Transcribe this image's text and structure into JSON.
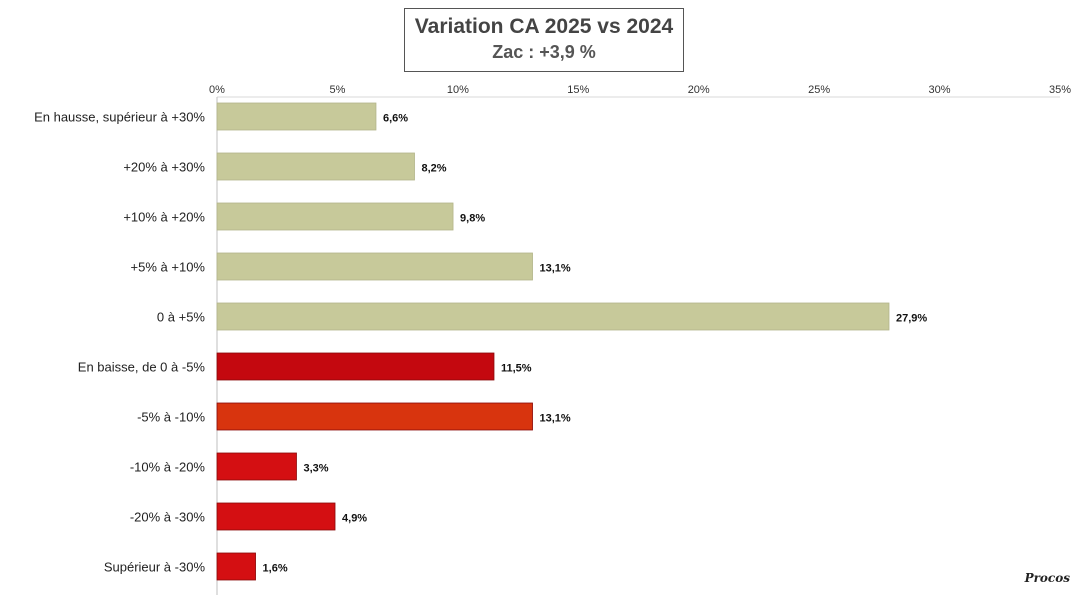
{
  "header": {
    "title": "Variation CA 2025 vs 2024",
    "subtitle": "Zac : +3,9 %"
  },
  "watermark": "Procos",
  "colors": {
    "positive": "#c7c99a",
    "negative_dark": "#c4080f",
    "negative_orange": "#d8340e",
    "negative_red": "#d40f12",
    "axis": "#bfbfbf"
  },
  "chart_data": {
    "type": "bar",
    "orientation": "horizontal",
    "title": "Variation CA 2025 vs 2024",
    "subtitle": "Zac : +3,9 %",
    "xlim": [
      0,
      35
    ],
    "x_ticks": [
      "0%",
      "5%",
      "10%",
      "15%",
      "20%",
      "25%",
      "30%",
      "35%"
    ],
    "tick_values": [
      0,
      5,
      10,
      15,
      20,
      25,
      30,
      35
    ],
    "grid": false,
    "categories": [
      "En hausse, supérieur à +30%",
      "+20% à +30%",
      "+10% à +20%",
      "+5% à +10%",
      "0 à +5%",
      "En baisse, de 0 à -5%",
      "-5% à -10%",
      "-10% à -20%",
      "-20% à -30%",
      "Supérieur à -30%"
    ],
    "values": [
      6.6,
      8.2,
      9.8,
      13.1,
      27.9,
      11.5,
      13.1,
      3.3,
      4.9,
      1.6
    ],
    "labels": [
      "6,6%",
      "8,2%",
      "9,8%",
      "13,1%",
      "27,9%",
      "11,5%",
      "13,1%",
      "3,3%",
      "4,9%",
      "1,6%"
    ],
    "bar_colors": [
      "#c7c99a",
      "#c7c99a",
      "#c7c99a",
      "#c7c99a",
      "#c7c99a",
      "#c4080f",
      "#d8340e",
      "#d40f12",
      "#d40f12",
      "#d40f12"
    ]
  }
}
